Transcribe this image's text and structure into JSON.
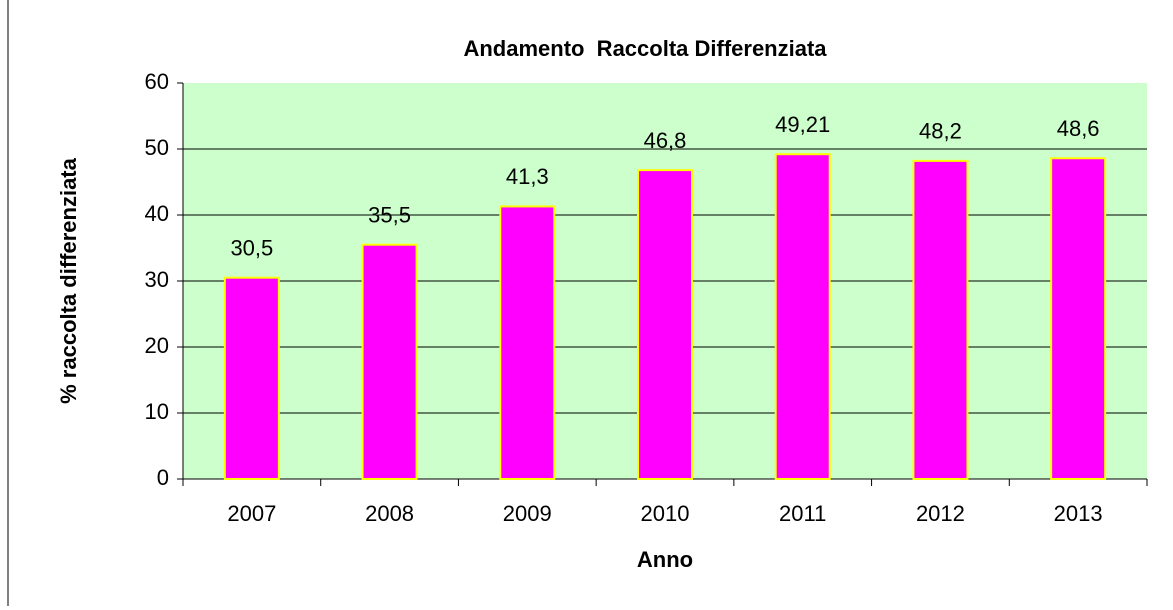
{
  "chart_data": {
    "type": "bar",
    "title": "Andamento  Raccolta Differenziata",
    "x_label": "Anno",
    "y_label": "% raccolta differenziata",
    "categories": [
      "2007",
      "2008",
      "2009",
      "2010",
      "2011",
      "2012",
      "2013"
    ],
    "values": [
      30.5,
      35.5,
      41.3,
      46.8,
      49.21,
      48.2,
      48.6
    ],
    "value_labels": [
      "30,5",
      "35,5",
      "41,3",
      "46,8",
      "49,21",
      "48,2",
      "48,6"
    ],
    "color": "#ff00ff",
    "edge_color": "#ffff00",
    "background": "#ccffcc",
    "ylim": [
      0,
      60
    ],
    "yticks": [
      0,
      10,
      20,
      30,
      40,
      50,
      60
    ],
    "grid": true
  }
}
